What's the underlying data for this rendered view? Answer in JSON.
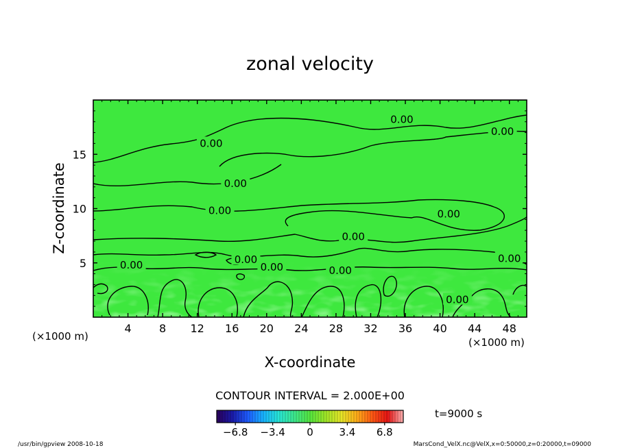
{
  "chart_data": {
    "type": "heatmap",
    "title": "zonal velocity",
    "xlabel": "X-coordinate",
    "ylabel": "Z-coordinate",
    "x_unit": "(×1000 m)",
    "x_unit_right": "(×1000 m)",
    "xlim": [
      0,
      50
    ],
    "ylim": [
      0,
      20
    ],
    "x_ticks": [
      "4",
      "8",
      "12",
      "16",
      "20",
      "24",
      "28",
      "32",
      "36",
      "40",
      "44",
      "48"
    ],
    "x_tick_values": [
      4,
      8,
      12,
      16,
      20,
      24,
      28,
      32,
      36,
      40,
      44,
      48
    ],
    "y_ticks": [
      "5",
      "10",
      "15"
    ],
    "y_tick_values": [
      5,
      10,
      15
    ],
    "contour_label": "0.00",
    "contour_labels": [
      {
        "x": 13.6,
        "z": 16.0,
        "text": "0.00"
      },
      {
        "x": 35.6,
        "z": 18.2,
        "text": "0.00"
      },
      {
        "x": 47.2,
        "z": 17.1,
        "text": "0.00"
      },
      {
        "x": 16.4,
        "z": 12.3,
        "text": "0.00"
      },
      {
        "x": 14.6,
        "z": 9.8,
        "text": "0.00"
      },
      {
        "x": 41.0,
        "z": 9.5,
        "text": "0.00"
      },
      {
        "x": 30.0,
        "z": 7.4,
        "text": "0.00"
      },
      {
        "x": 17.6,
        "z": 5.3,
        "text": "0.00"
      },
      {
        "x": 20.6,
        "z": 4.6,
        "text": "0.00"
      },
      {
        "x": 4.4,
        "z": 4.8,
        "text": "0.00"
      },
      {
        "x": 28.5,
        "z": 4.3,
        "text": "0.00"
      },
      {
        "x": 48.0,
        "z": 5.4,
        "text": "0.00"
      },
      {
        "x": 42.0,
        "z": 1.6,
        "text": "0.00"
      }
    ],
    "contour_interval_text": "CONTOUR INTERVAL = 2.000E+00",
    "time_label": "t=9000 s",
    "colorbar": {
      "min": -8.5,
      "max": 8.5,
      "tick_labels": [
        "−6.8",
        "−3.4",
        "0",
        "3.4",
        "6.8"
      ],
      "tick_values": [
        -6.8,
        -3.4,
        0,
        3.4,
        6.8
      ],
      "colors": [
        "#2a005a",
        "#1a1aa8",
        "#1e5cff",
        "#18b4ff",
        "#28e6d6",
        "#3ee88c",
        "#55e63e",
        "#9ee628",
        "#e6e628",
        "#ffae1a",
        "#ff5a14",
        "#e61414",
        "#ffb4b4"
      ]
    },
    "field_color": "#3ee83e"
  },
  "footer": {
    "left": "/usr/bin/gpview   2008-10-18",
    "right": "MarsCond_VelX.nc@VelX,x=0:50000,z=0:20000,t=09000"
  }
}
